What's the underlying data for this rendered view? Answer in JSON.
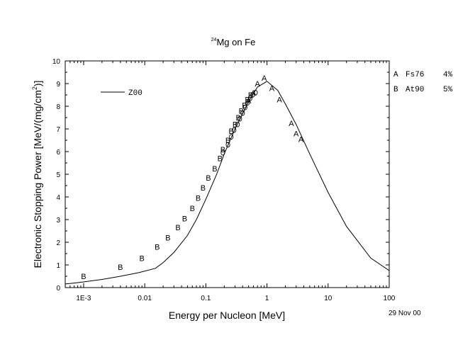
{
  "chart_data": {
    "type": "scatter",
    "title_sup": "24",
    "title_main": "Mg on Fe",
    "xlabel": "Energy per Nucleon [MeV]",
    "ylabel_pre": "Electronic Stopping Power [MeV/(mg/cm",
    "ylabel_sup": "2",
    "ylabel_post": ")]",
    "x_scale": "log",
    "xlim": [
      0.0005,
      100
    ],
    "ylim": [
      0,
      10
    ],
    "x_ticks": [
      {
        "value": 0.001,
        "label": "1E-3"
      },
      {
        "value": 0.01,
        "label": "0.01"
      },
      {
        "value": 0.1,
        "label": "0.1"
      },
      {
        "value": 1,
        "label": "1"
      },
      {
        "value": 10,
        "label": "10"
      },
      {
        "value": 100,
        "label": "100"
      }
    ],
    "y_ticks": [
      0,
      1,
      2,
      3,
      4,
      5,
      6,
      7,
      8,
      9,
      10
    ],
    "date": "29 Nov 00",
    "legend_line": {
      "name": "Z00"
    },
    "legend_markers": [
      {
        "marker": "A",
        "source": "Fs76",
        "error": "4%"
      },
      {
        "marker": "B",
        "source": "At90",
        "error": "5%"
      }
    ],
    "series": [
      {
        "name": "Z00",
        "kind": "line",
        "points": [
          [
            0.0005,
            0.16
          ],
          [
            0.0007,
            0.2
          ],
          [
            0.001,
            0.25
          ],
          [
            0.002,
            0.36
          ],
          [
            0.004,
            0.5
          ],
          [
            0.008,
            0.66
          ],
          [
            0.015,
            0.85
          ],
          [
            0.02,
            1.1
          ],
          [
            0.03,
            1.55
          ],
          [
            0.05,
            2.3
          ],
          [
            0.07,
            3.0
          ],
          [
            0.1,
            3.9
          ],
          [
            0.15,
            5.0
          ],
          [
            0.2,
            5.9
          ],
          [
            0.3,
            7.0
          ],
          [
            0.5,
            8.2
          ],
          [
            0.7,
            8.85
          ],
          [
            1.0,
            9.1
          ],
          [
            1.5,
            8.7
          ],
          [
            2,
            8.1
          ],
          [
            3,
            7.2
          ],
          [
            5,
            5.9
          ],
          [
            10,
            4.2
          ],
          [
            20,
            2.7
          ],
          [
            50,
            1.3
          ],
          [
            100,
            0.75
          ]
        ]
      },
      {
        "name": "Fs76",
        "kind": "markers",
        "marker": "A",
        "points": [
          [
            0.5,
            8.25
          ],
          [
            0.6,
            8.6
          ],
          [
            0.7,
            9.0
          ],
          [
            0.9,
            9.25
          ],
          [
            1.2,
            8.8
          ],
          [
            1.6,
            8.3
          ],
          [
            2.5,
            7.25
          ],
          [
            3.0,
            6.8
          ],
          [
            3.6,
            6.55
          ]
        ]
      },
      {
        "name": "At90",
        "kind": "markers",
        "marker": "B",
        "points": [
          [
            0.001,
            0.5
          ],
          [
            0.004,
            0.9
          ],
          [
            0.009,
            1.3
          ],
          [
            0.016,
            1.8
          ],
          [
            0.024,
            2.2
          ],
          [
            0.035,
            2.65
          ],
          [
            0.045,
            3.05
          ],
          [
            0.06,
            3.5
          ],
          [
            0.075,
            3.95
          ],
          [
            0.09,
            4.4
          ],
          [
            0.11,
            4.85
          ],
          [
            0.14,
            5.25
          ],
          [
            0.17,
            5.7
          ],
          [
            0.19,
            6.1
          ],
          [
            0.23,
            6.5
          ],
          [
            0.26,
            6.9
          ],
          [
            0.3,
            7.2
          ],
          [
            0.34,
            7.5
          ],
          [
            0.38,
            7.8
          ],
          [
            0.43,
            8.05
          ],
          [
            0.48,
            8.3
          ],
          [
            0.54,
            8.5
          ]
        ]
      },
      {
        "name": "unlabeled-circles",
        "kind": "markers",
        "marker": "O",
        "points": [
          [
            0.19,
            5.95
          ],
          [
            0.23,
            6.3
          ],
          [
            0.26,
            6.65
          ],
          [
            0.29,
            6.95
          ],
          [
            0.33,
            7.2
          ],
          [
            0.36,
            7.45
          ],
          [
            0.4,
            7.7
          ],
          [
            0.44,
            7.95
          ],
          [
            0.48,
            8.15
          ],
          [
            0.53,
            8.35
          ],
          [
            0.58,
            8.5
          ],
          [
            0.65,
            8.6
          ]
        ]
      }
    ]
  }
}
